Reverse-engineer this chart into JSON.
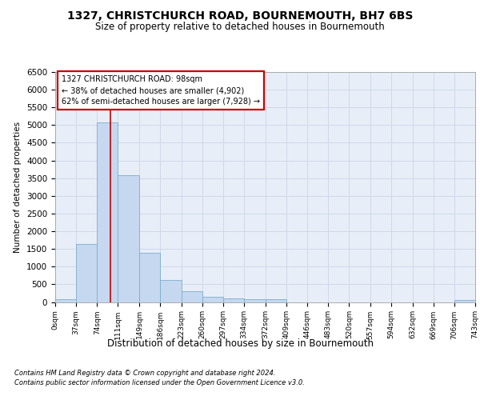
{
  "title": "1327, CHRISTCHURCH ROAD, BOURNEMOUTH, BH7 6BS",
  "subtitle": "Size of property relative to detached houses in Bournemouth",
  "xlabel": "Distribution of detached houses by size in Bournemouth",
  "ylabel": "Number of detached properties",
  "bar_left_edges": [
    0,
    37,
    74,
    111,
    149,
    186,
    223,
    260,
    297,
    334,
    372,
    409,
    446,
    483,
    520,
    557,
    594,
    632,
    669,
    706
  ],
  "bar_widths": [
    37,
    37,
    37,
    38,
    37,
    37,
    37,
    37,
    37,
    38,
    37,
    37,
    37,
    37,
    37,
    37,
    38,
    37,
    37,
    37
  ],
  "bar_heights": [
    75,
    1650,
    5075,
    3575,
    1400,
    625,
    300,
    150,
    100,
    75,
    75,
    0,
    0,
    0,
    0,
    0,
    0,
    0,
    0,
    50
  ],
  "bar_color": "#c5d8ef",
  "bar_edge_color": "#7aaed0",
  "property_line_x": 98,
  "property_line_color": "#cc0000",
  "annotation_line1": "1327 CHRISTCHURCH ROAD: 98sqm",
  "annotation_line2": "← 38% of detached houses are smaller (4,902)",
  "annotation_line3": "62% of semi-detached houses are larger (7,928) →",
  "annotation_box_color": "#cc0000",
  "ylim": [
    0,
    6500
  ],
  "xlim": [
    0,
    743
  ],
  "xtick_positions": [
    0,
    37,
    74,
    111,
    149,
    186,
    223,
    260,
    297,
    334,
    372,
    409,
    446,
    483,
    520,
    557,
    594,
    632,
    669,
    706,
    743
  ],
  "xtick_labels": [
    "0sqm",
    "37sqm",
    "74sqm",
    "111sqm",
    "149sqm",
    "186sqm",
    "223sqm",
    "260sqm",
    "297sqm",
    "334sqm",
    "372sqm",
    "409sqm",
    "446sqm",
    "483sqm",
    "520sqm",
    "557sqm",
    "594sqm",
    "632sqm",
    "669sqm",
    "706sqm",
    "743sqm"
  ],
  "ytick_positions": [
    0,
    500,
    1000,
    1500,
    2000,
    2500,
    3000,
    3500,
    4000,
    4500,
    5000,
    5500,
    6000,
    6500
  ],
  "grid_color": "#ccd6e8",
  "background_color": "#e8eef8",
  "footer_line1": "Contains HM Land Registry data © Crown copyright and database right 2024.",
  "footer_line2": "Contains public sector information licensed under the Open Government Licence v3.0."
}
